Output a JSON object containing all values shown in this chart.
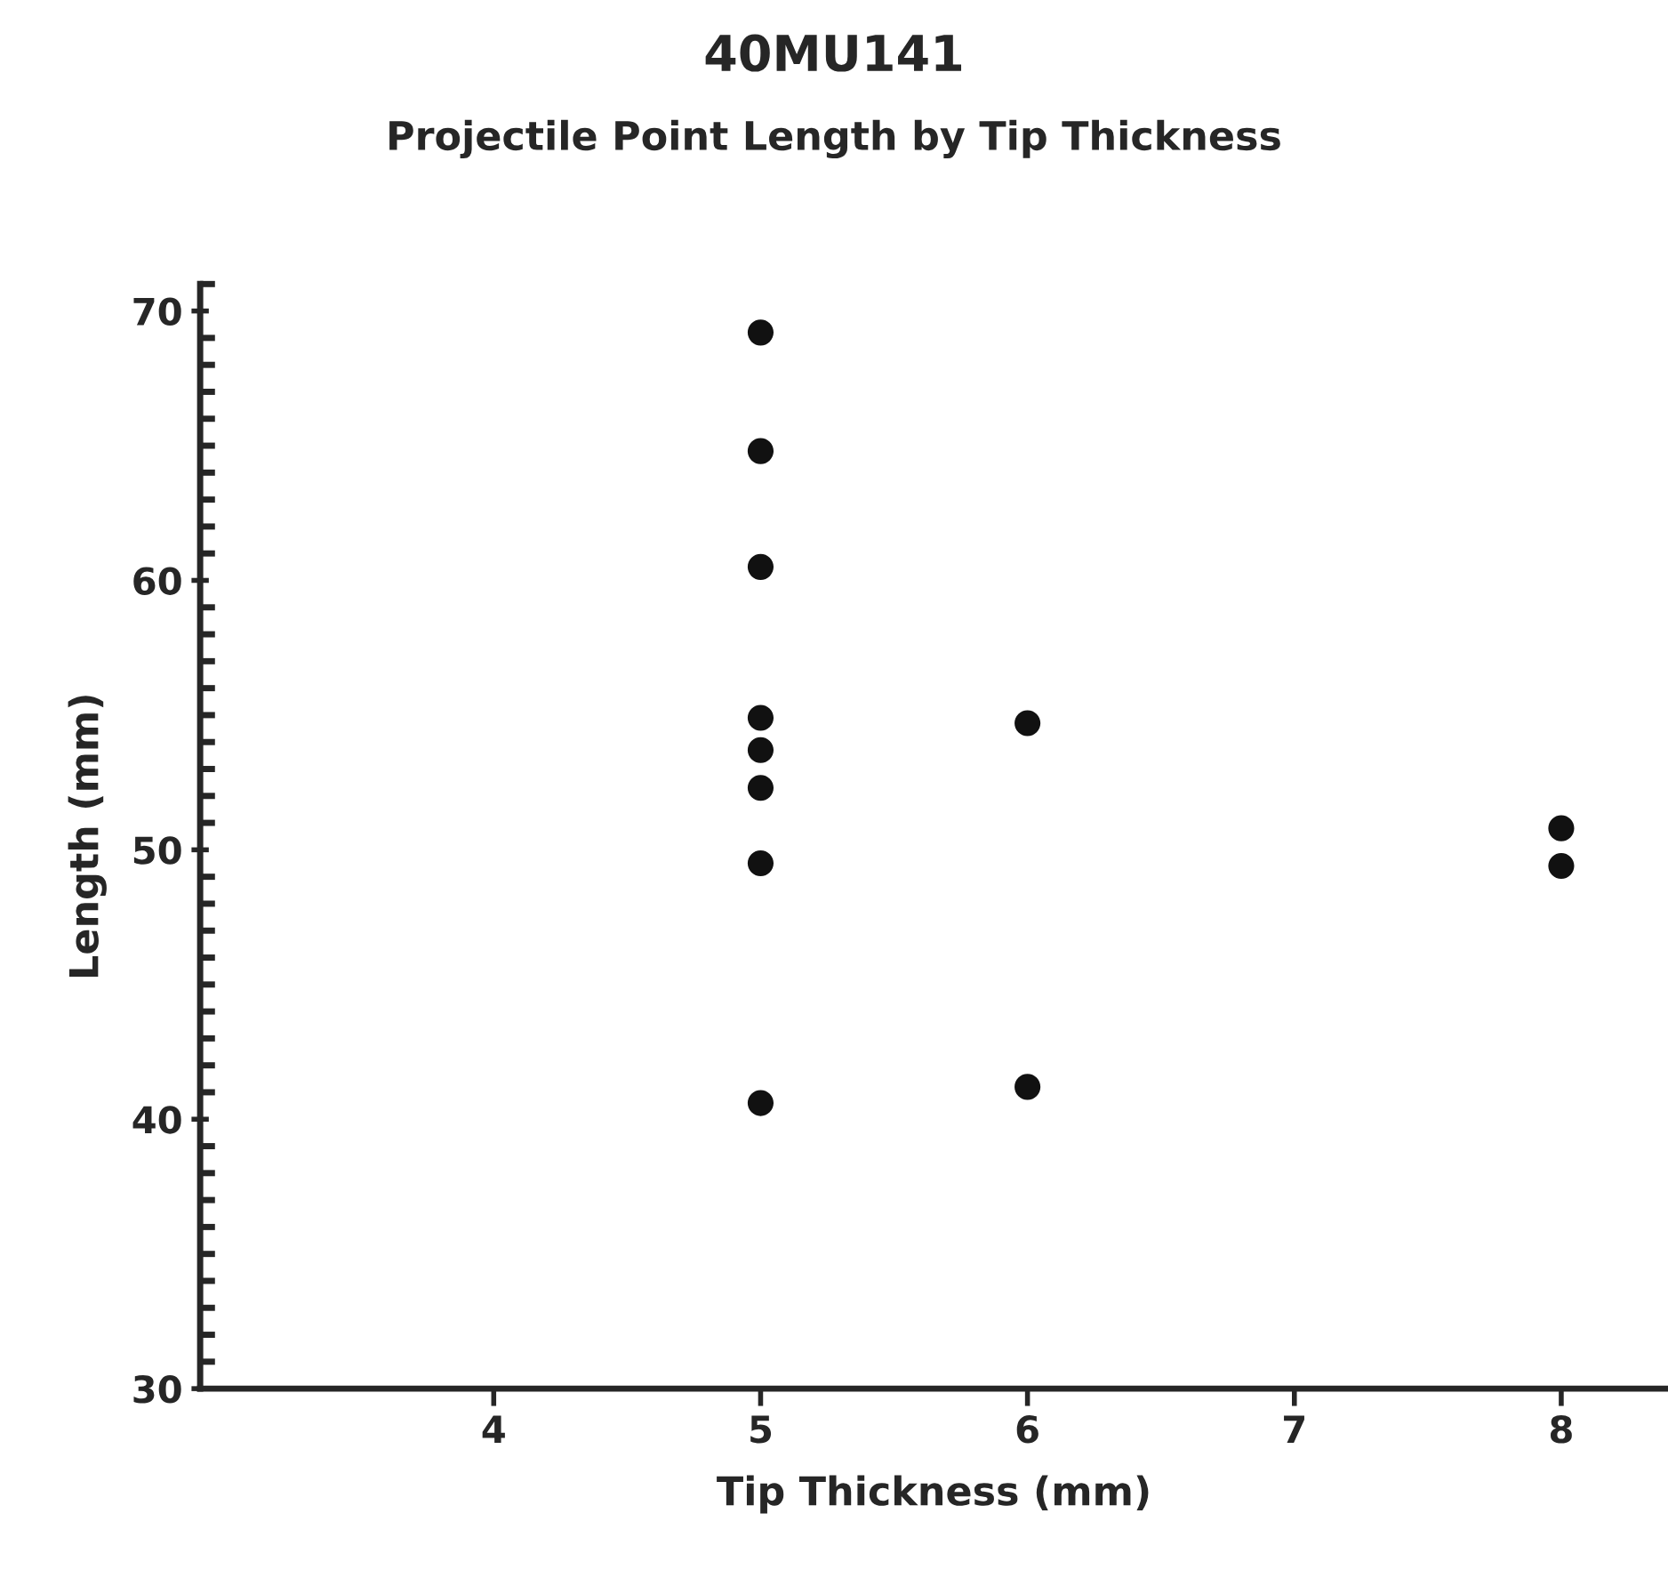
{
  "chart_data": {
    "type": "scatter",
    "title": "40MU141",
    "subtitle": "Projectile Point Length by Tip Thickness",
    "xlabel": "Tip Thickness (mm)",
    "ylabel": "Length (mm)",
    "x": [
      5,
      5,
      5,
      5,
      5,
      5,
      5,
      5,
      6,
      6,
      8,
      8
    ],
    "values": [
      69.2,
      64.8,
      60.5,
      54.9,
      53.7,
      52.3,
      49.5,
      40.6,
      54.7,
      41.2,
      50.8,
      49.4
    ],
    "color": "#111111",
    "marker": "circle",
    "xlim": [
      2.9,
      8.4
    ],
    "xticks": [
      4,
      5,
      6,
      7,
      8
    ],
    "ylim": [
      30,
      71
    ],
    "yticks": [
      30,
      40,
      50,
      60,
      70
    ],
    "grid": false
  }
}
